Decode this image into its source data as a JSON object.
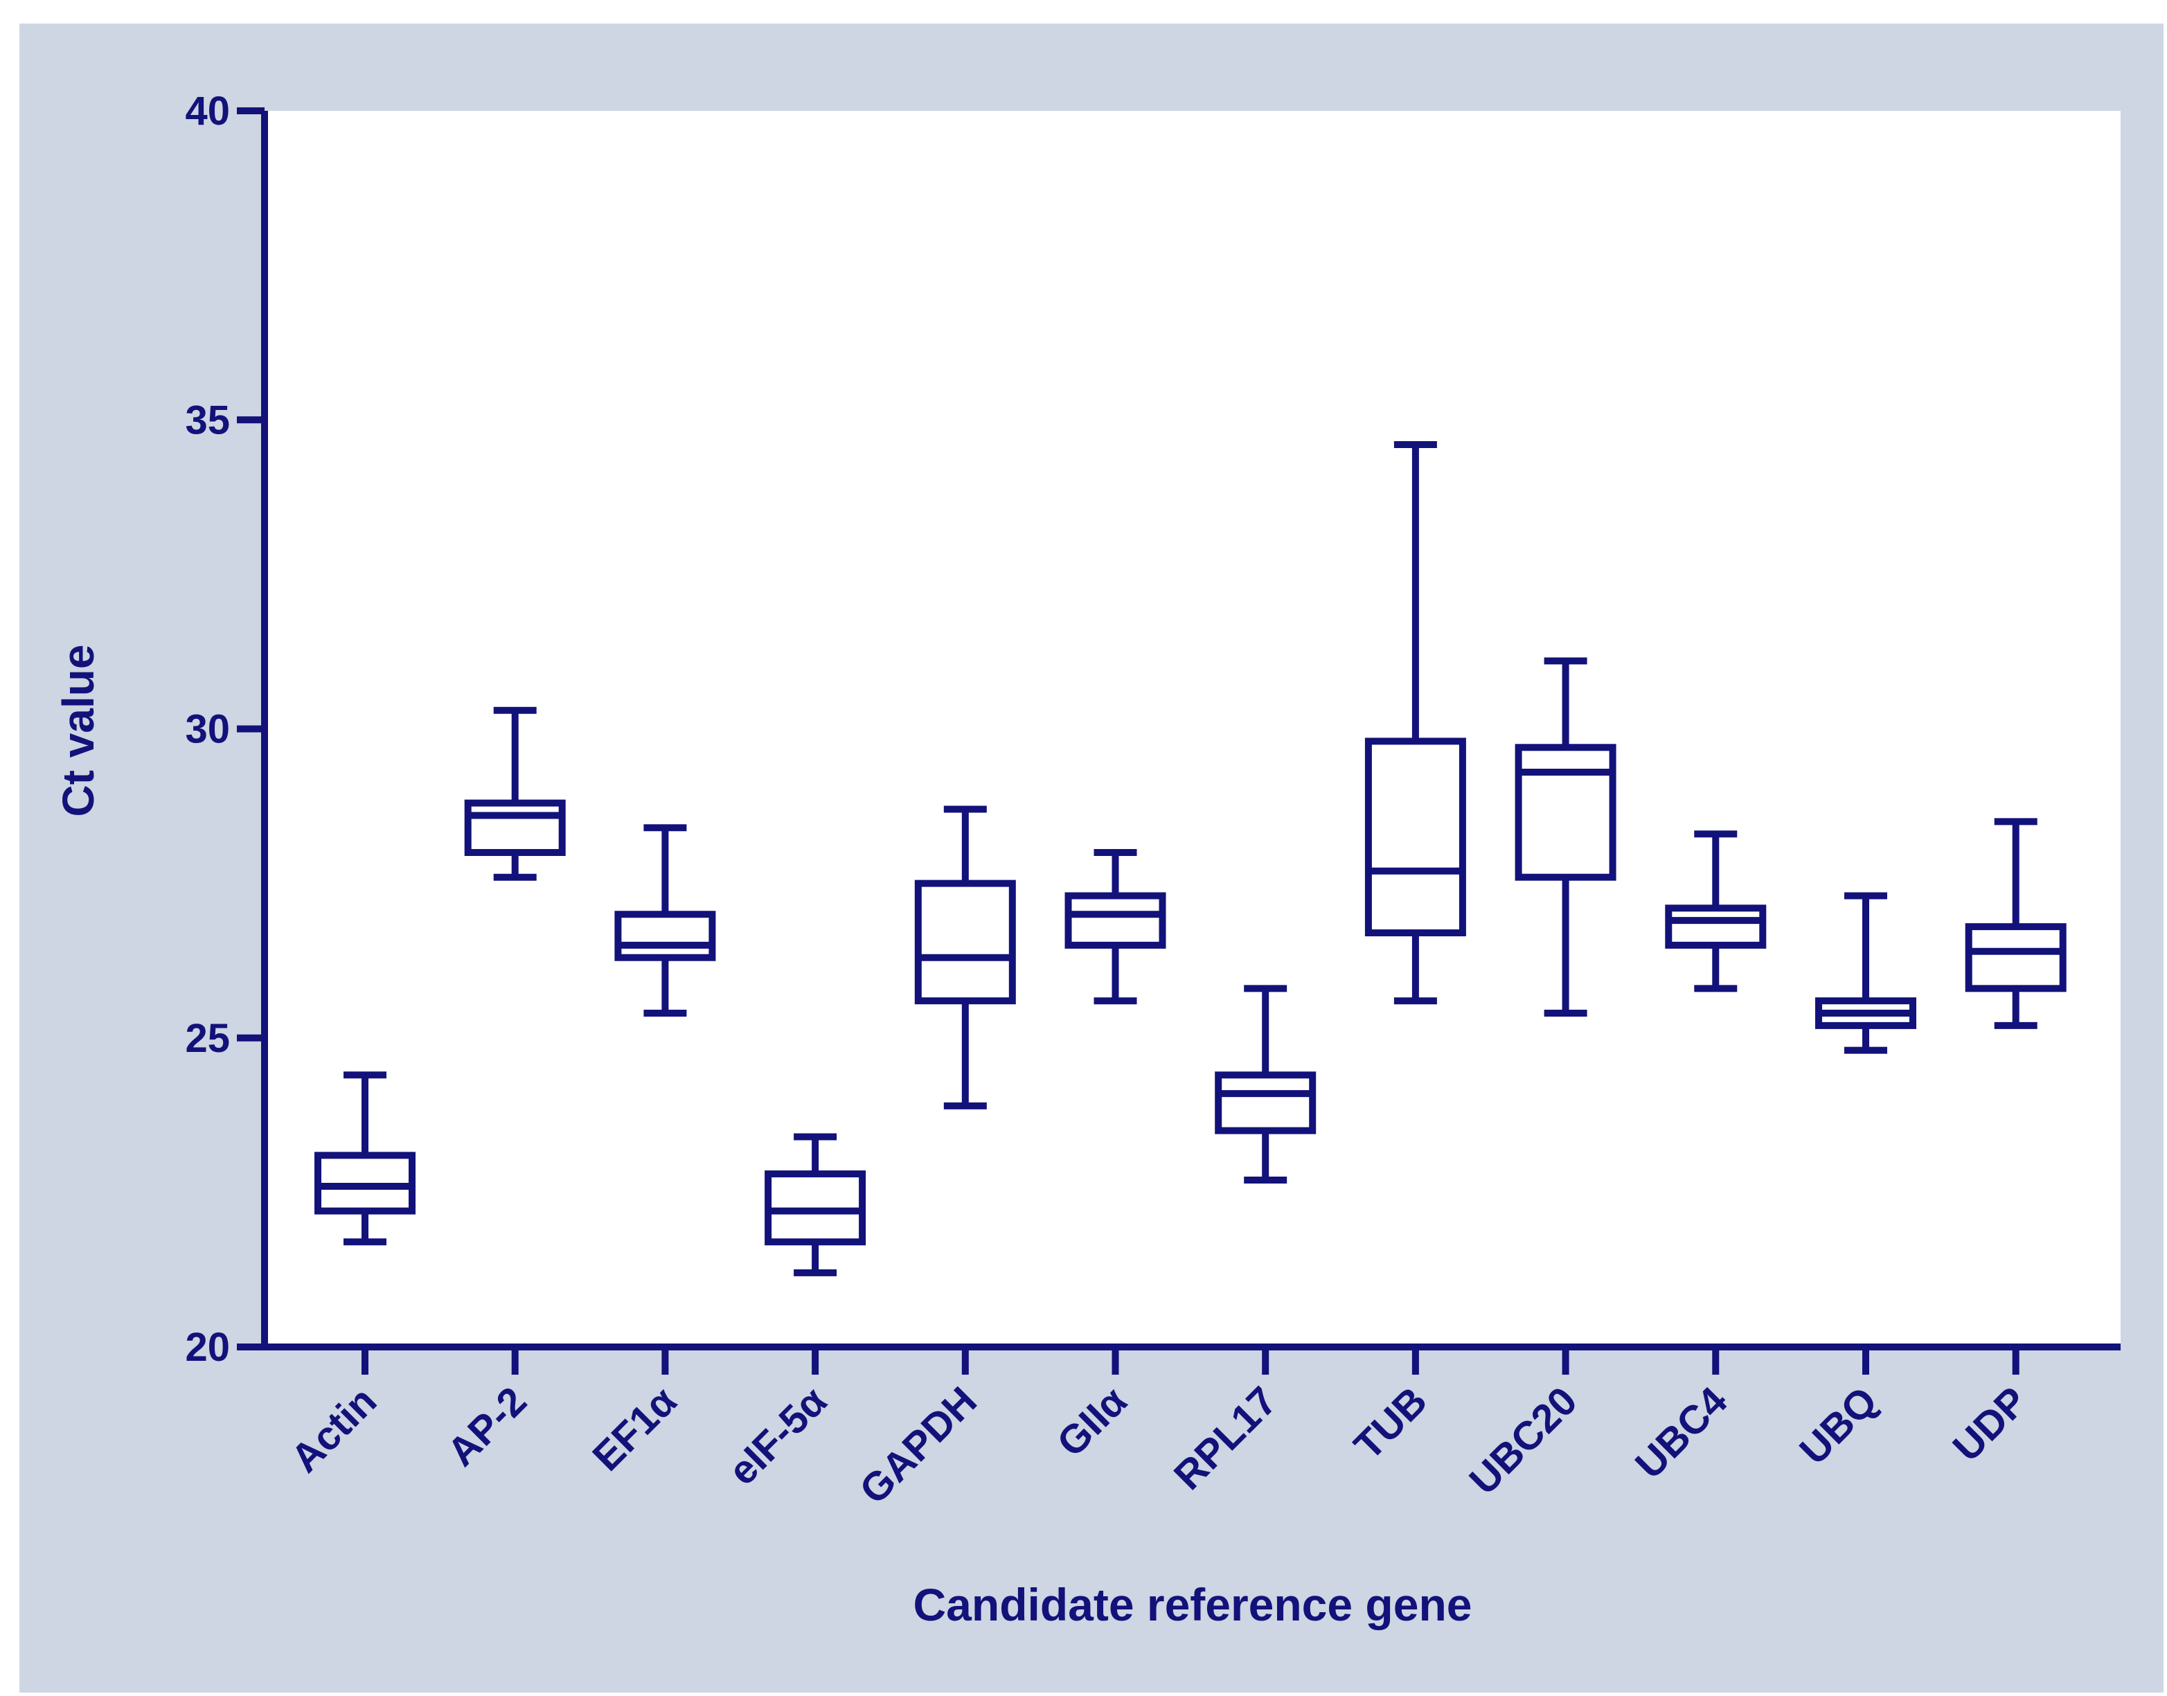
{
  "chart_data": {
    "type": "boxplot",
    "title": "",
    "xlabel": "Candidate reference gene",
    "ylabel": "Ct value",
    "ylim": [
      20,
      40
    ],
    "yticks": [
      20,
      25,
      30,
      35,
      40
    ],
    "grid": false,
    "colors": {
      "frame_bg": "#ced5e3",
      "plot_bg": "#ffffff",
      "ink": "#12127a"
    },
    "categories": [
      "Actin",
      "AP-2",
      "EF1α",
      "eIF-5α",
      "GAPDH",
      "GIIα",
      "RPL17",
      "TUB",
      "UBC20",
      "UBC4",
      "UBQ",
      "UDP"
    ],
    "boxes": [
      {
        "name": "Actin",
        "min": 21.7,
        "q1": 22.2,
        "median": 22.6,
        "q3": 23.1,
        "max": 24.4
      },
      {
        "name": "AP-2",
        "min": 27.6,
        "q1": 28.0,
        "median": 28.6,
        "q3": 28.8,
        "max": 30.3
      },
      {
        "name": "EF1α",
        "min": 25.4,
        "q1": 26.3,
        "median": 26.5,
        "q3": 27.0,
        "max": 28.4
      },
      {
        "name": "eIF-5α",
        "min": 21.2,
        "q1": 21.7,
        "median": 22.2,
        "q3": 22.8,
        "max": 23.4
      },
      {
        "name": "GAPDH",
        "min": 23.9,
        "q1": 25.6,
        "median": 26.3,
        "q3": 27.5,
        "max": 28.7
      },
      {
        "name": "GIIα",
        "min": 25.6,
        "q1": 26.5,
        "median": 27.0,
        "q3": 27.3,
        "max": 28.0
      },
      {
        "name": "RPL17",
        "min": 22.7,
        "q1": 23.5,
        "median": 24.1,
        "q3": 24.4,
        "max": 25.8
      },
      {
        "name": "TUB",
        "min": 25.6,
        "q1": 26.7,
        "median": 27.7,
        "q3": 29.8,
        "max": 34.6
      },
      {
        "name": "UBC20",
        "min": 25.4,
        "q1": 27.6,
        "median": 29.3,
        "q3": 29.7,
        "max": 31.1
      },
      {
        "name": "UBC4",
        "min": 25.8,
        "q1": 26.5,
        "median": 26.9,
        "q3": 27.1,
        "max": 28.3
      },
      {
        "name": "UBQ",
        "min": 24.8,
        "q1": 25.2,
        "median": 25.4,
        "q3": 25.6,
        "max": 27.3
      },
      {
        "name": "UDP",
        "min": 25.2,
        "q1": 25.8,
        "median": 26.4,
        "q3": 26.8,
        "max": 28.5
      }
    ]
  }
}
